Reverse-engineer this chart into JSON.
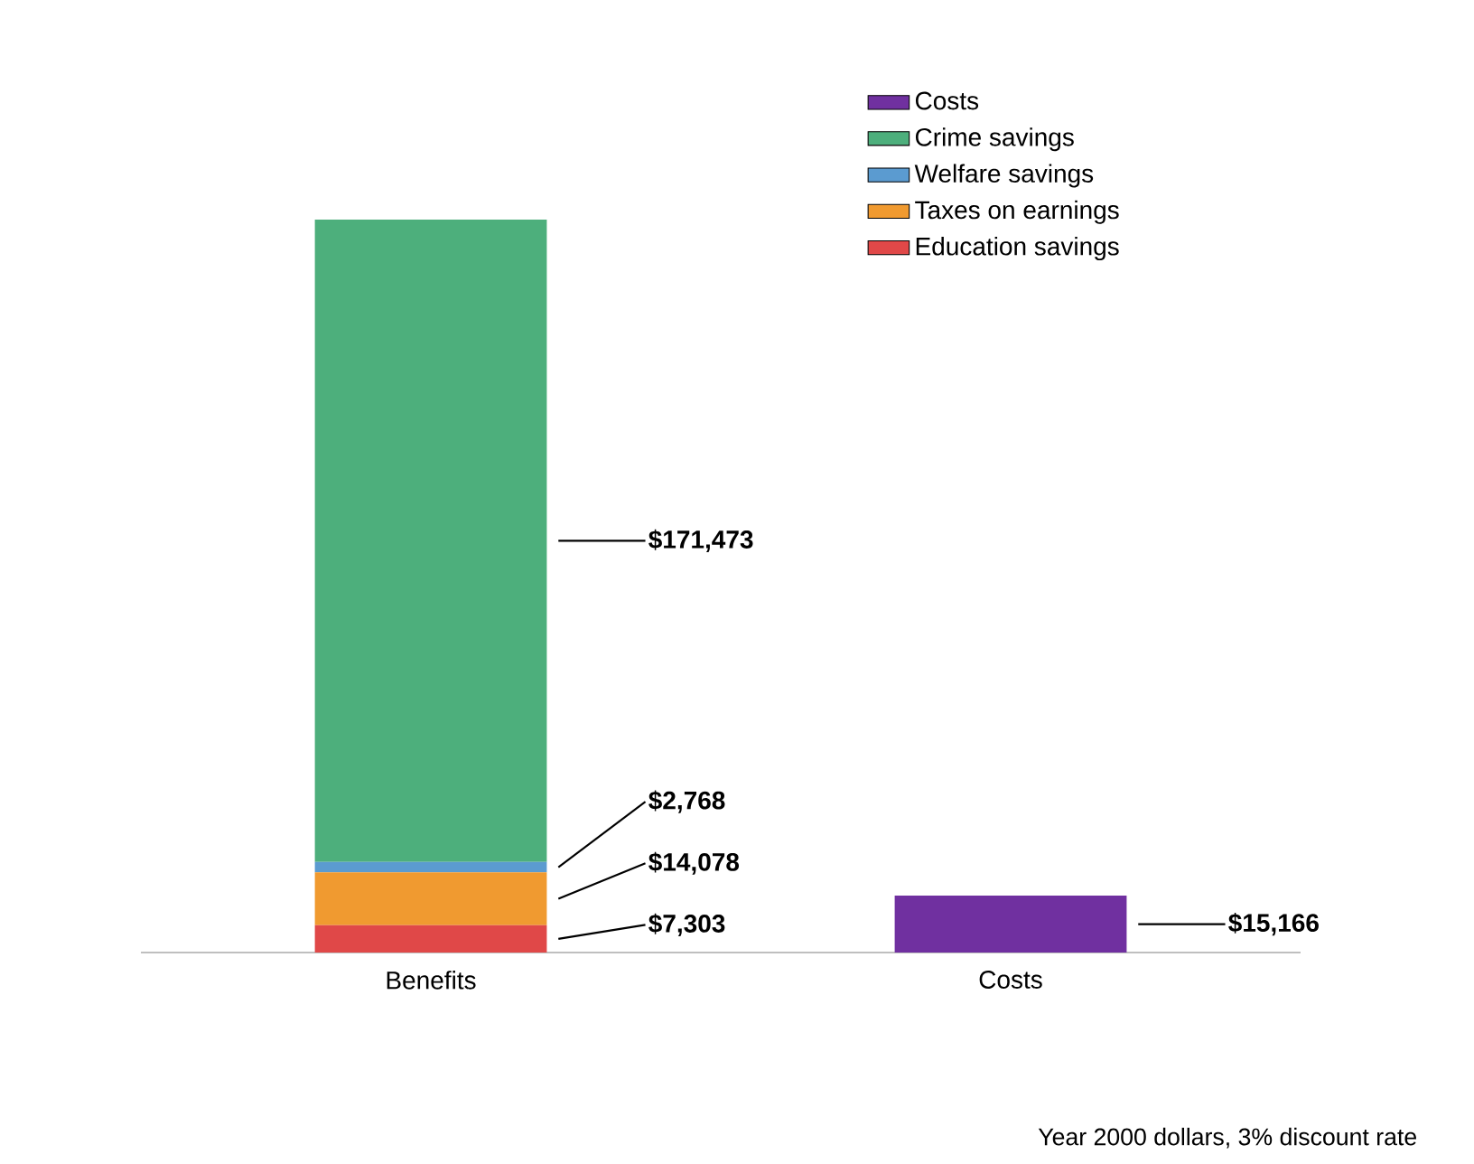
{
  "chart_data": {
    "type": "bar",
    "stacked": true,
    "categories": [
      "Benefits",
      "Costs"
    ],
    "series": [
      {
        "name": "Education savings",
        "color": "#e04848",
        "values": [
          7303,
          null
        ],
        "value_labels": [
          "$7,303",
          null
        ]
      },
      {
        "name": "Taxes on earnings",
        "color": "#f09a30",
        "values": [
          14078,
          null
        ],
        "value_labels": [
          "$14,078",
          null
        ]
      },
      {
        "name": "Welfare savings",
        "color": "#5b9bd0",
        "values": [
          2768,
          null
        ],
        "value_labels": [
          "$2,768",
          null
        ]
      },
      {
        "name": "Crime savings",
        "color": "#4daf7c",
        "values": [
          171473,
          null
        ],
        "value_labels": [
          "$171,473",
          null
        ]
      },
      {
        "name": "Costs",
        "color": "#7030a0",
        "values": [
          null,
          15166
        ],
        "value_labels": [
          null,
          "$15,166"
        ]
      }
    ],
    "legend": "top right",
    "annotations": [
      "Year 2000 dollars, 3% discount rate"
    ]
  }
}
